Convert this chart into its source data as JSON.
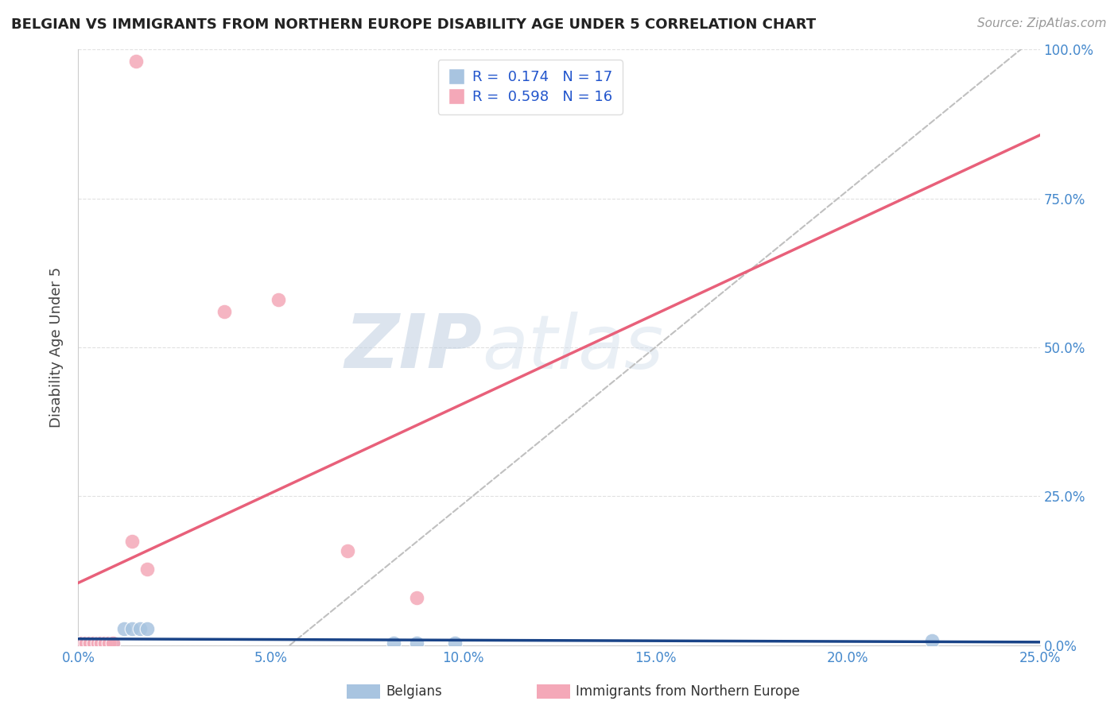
{
  "title": "BELGIAN VS IMMIGRANTS FROM NORTHERN EUROPE DISABILITY AGE UNDER 5 CORRELATION CHART",
  "source": "Source: ZipAtlas.com",
  "ylabel": "Disability Age Under 5",
  "xlim": [
    0.0,
    0.25
  ],
  "ylim": [
    0.0,
    1.0
  ],
  "xticks": [
    0.0,
    0.05,
    0.1,
    0.15,
    0.2,
    0.25
  ],
  "xtick_labels": [
    "0.0%",
    "5.0%",
    "10.0%",
    "15.0%",
    "20.0%",
    "25.0%"
  ],
  "yticks": [
    0.0,
    0.25,
    0.5,
    0.75,
    1.0
  ],
  "ytick_labels": [
    "0.0%",
    "25.0%",
    "50.0%",
    "75.0%",
    "100.0%"
  ],
  "belgian_R": 0.174,
  "belgian_N": 17,
  "immigrant_R": 0.598,
  "immigrant_N": 16,
  "belgian_color": "#a8c4e0",
  "immigrant_color": "#f4a8b8",
  "belgian_line_color": "#1a4488",
  "immigrant_line_color": "#e8607a",
  "dashed_line_color": "#c0c0c0",
  "belgian_x": [
    0.001,
    0.002,
    0.003,
    0.004,
    0.005,
    0.006,
    0.007,
    0.008,
    0.009,
    0.012,
    0.014,
    0.016,
    0.018,
    0.082,
    0.088,
    0.098,
    0.222
  ],
  "belgian_y": [
    0.004,
    0.004,
    0.004,
    0.004,
    0.004,
    0.004,
    0.004,
    0.004,
    0.004,
    0.028,
    0.028,
    0.028,
    0.028,
    0.004,
    0.004,
    0.004,
    0.008
  ],
  "immigrant_x": [
    0.001,
    0.002,
    0.003,
    0.004,
    0.005,
    0.006,
    0.007,
    0.008,
    0.009,
    0.014,
    0.018,
    0.038,
    0.052,
    0.07,
    0.088,
    0.015
  ],
  "immigrant_y": [
    0.004,
    0.004,
    0.004,
    0.004,
    0.004,
    0.004,
    0.004,
    0.004,
    0.004,
    0.175,
    0.128,
    0.56,
    0.58,
    0.158,
    0.08,
    0.98
  ],
  "watermark_zip": "ZIP",
  "watermark_atlas": "atlas",
  "legend_label_belgian": "Belgians",
  "legend_label_immigrant": "Immigrants from Northern Europe",
  "background_color": "#ffffff",
  "grid_color": "#dedede",
  "tick_color": "#4488cc",
  "title_color": "#222222",
  "source_color": "#999999",
  "ylabel_color": "#444444",
  "legend_text_color": "#2255cc"
}
